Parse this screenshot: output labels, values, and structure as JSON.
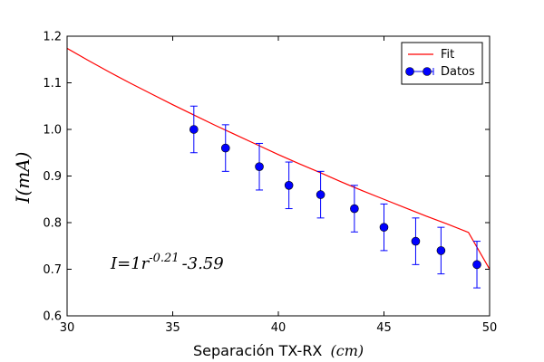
{
  "chart_data": {
    "type": "scatter",
    "xlabel": "Separación TX-RX",
    "xlabel_unit": "(cm)",
    "ylabel": "I(mA)",
    "xlim": [
      30,
      50
    ],
    "ylim": [
      0.6,
      1.2
    ],
    "x_ticks": [
      30,
      35,
      40,
      45,
      50
    ],
    "y_ticks": [
      0.6,
      0.7,
      0.8,
      0.9,
      1.0,
      1.1,
      1.2
    ],
    "x_tick_labels": [
      "30",
      "35",
      "40",
      "45",
      "50"
    ],
    "y_tick_labels": [
      "0.6",
      "0.7",
      "0.8",
      "0.9",
      "1.0",
      "1.1",
      "1.2"
    ],
    "grid": false,
    "legend_position": "top-right",
    "legend": {
      "fit_label": "Fit",
      "data_label": "Datos"
    },
    "annotation": "I=1r^{-0.21}-3.59",
    "colors": {
      "fit": "#ff0000",
      "data": "#0000ff"
    },
    "series": [
      {
        "name": "Datos",
        "kind": "points_with_errorbars",
        "x": [
          36.0,
          37.5,
          39.1,
          40.5,
          42.0,
          43.6,
          45.0,
          46.5,
          47.7,
          49.4
        ],
        "y": [
          1.0,
          0.96,
          0.92,
          0.88,
          0.86,
          0.83,
          0.79,
          0.76,
          0.74,
          0.71
        ],
        "yerr": [
          0.05,
          0.05,
          0.05,
          0.05,
          0.05,
          0.05,
          0.05,
          0.05,
          0.05,
          0.05
        ]
      },
      {
        "name": "Fit",
        "kind": "line",
        "x": [
          30,
          31,
          32,
          33,
          34,
          35,
          36,
          37,
          38,
          39,
          40,
          41,
          42,
          43,
          44,
          45,
          46,
          47,
          48,
          49,
          50
        ],
        "y": [
          1.174,
          1.148,
          1.123,
          1.099,
          1.076,
          1.053,
          1.031,
          1.009,
          0.988,
          0.967,
          0.946,
          0.926,
          0.907,
          0.887,
          0.868,
          0.85,
          0.832,
          0.814,
          0.797,
          0.779,
          0.7
        ]
      }
    ]
  }
}
